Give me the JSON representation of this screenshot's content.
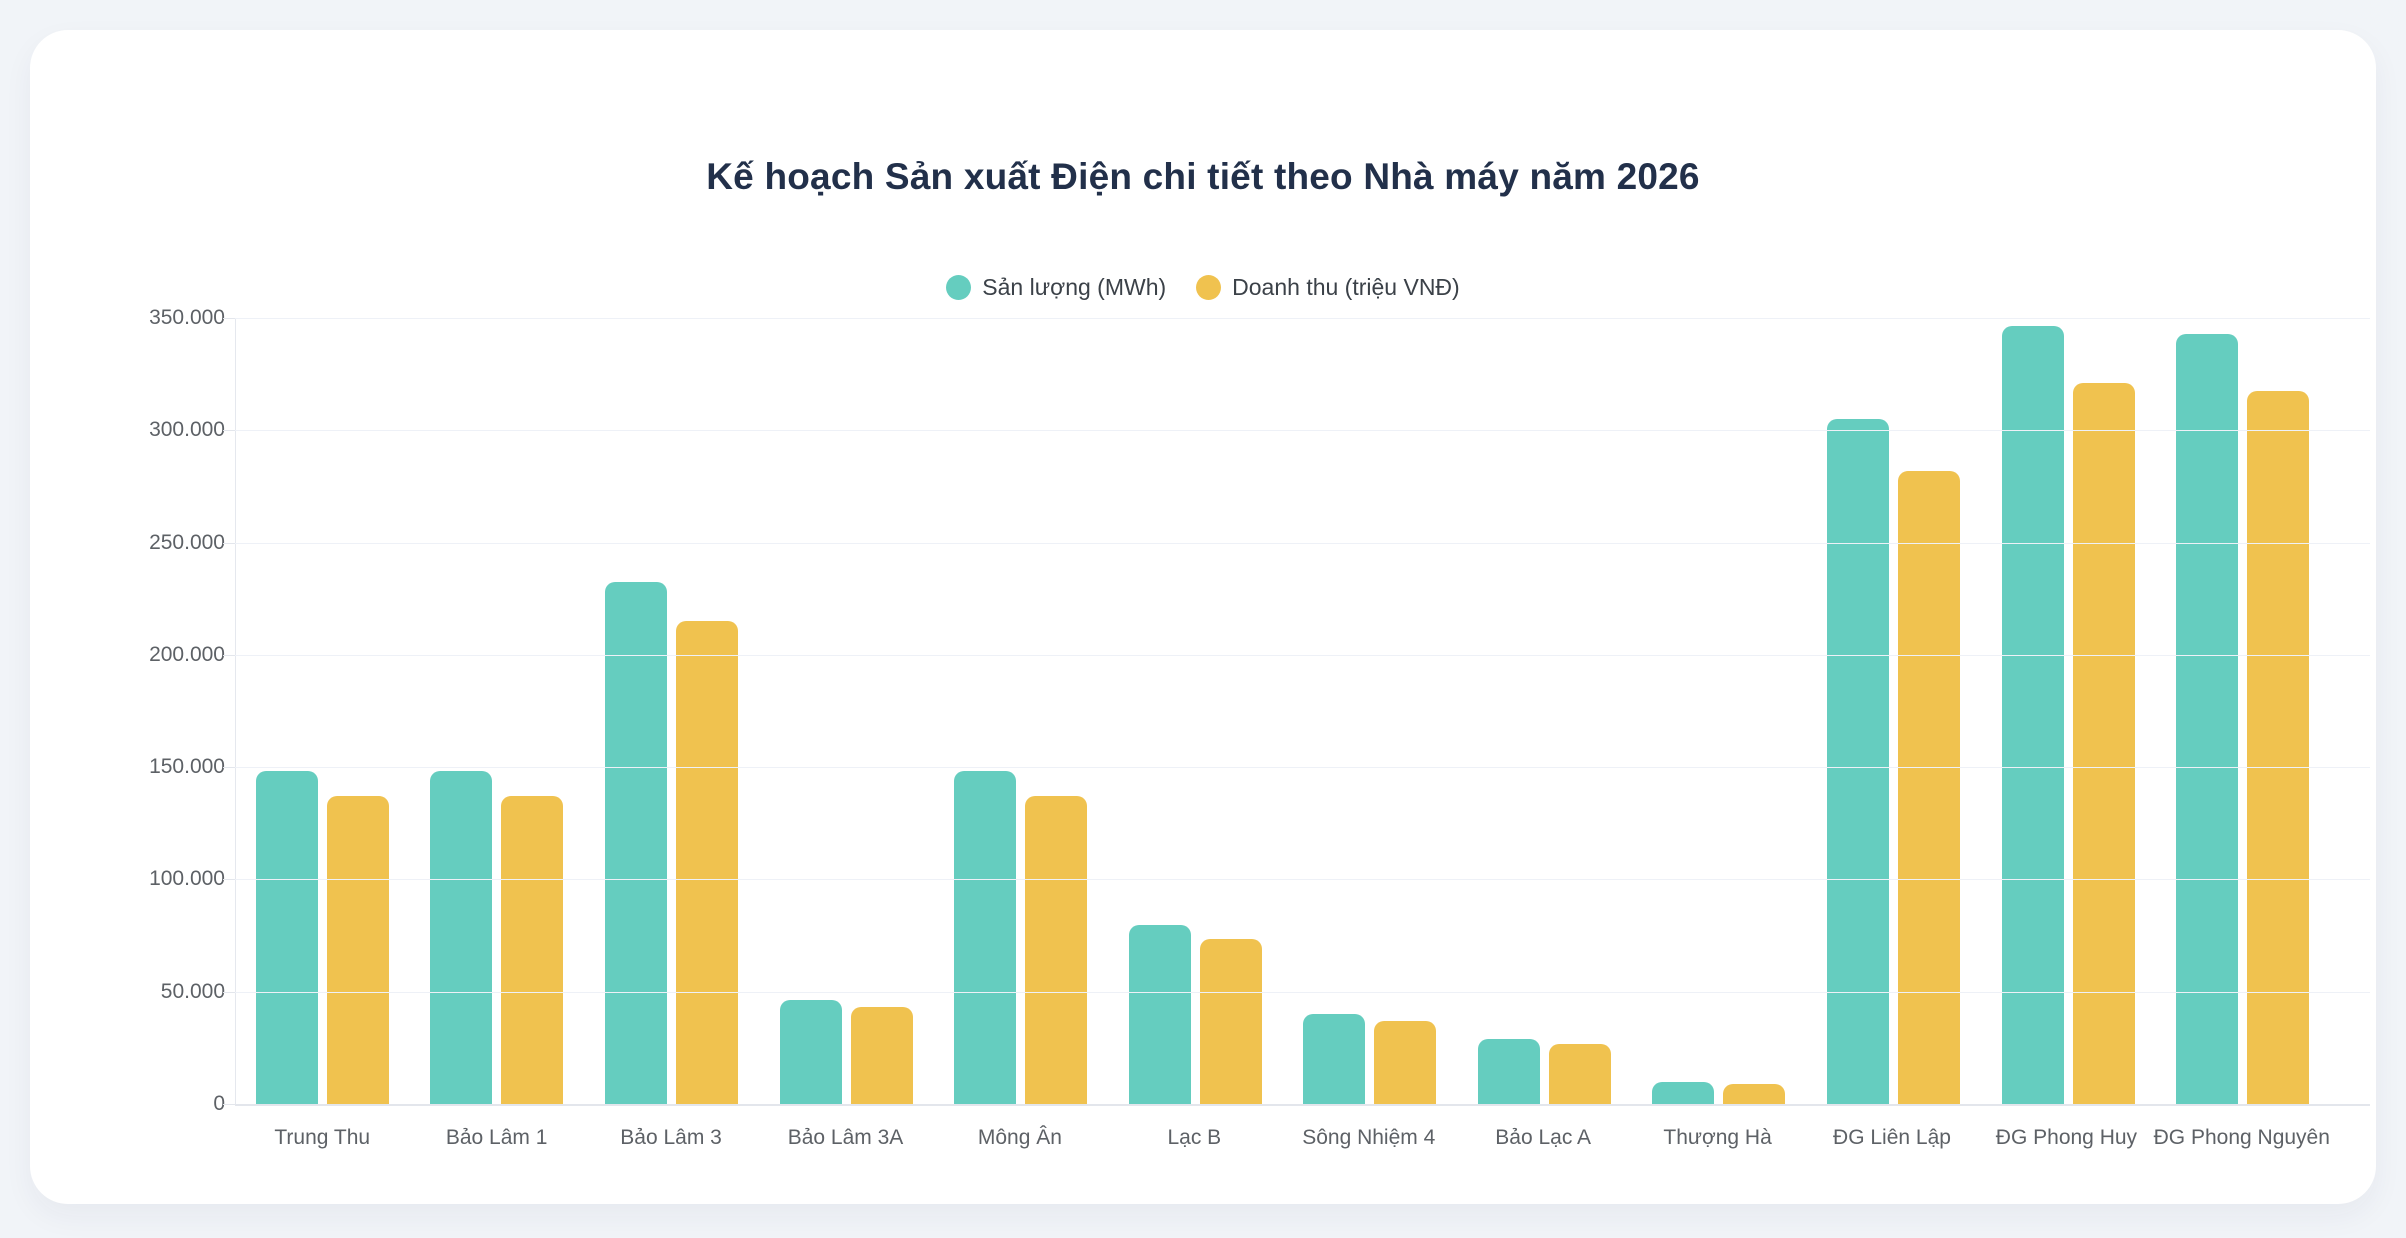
{
  "page": {
    "background_color": "#f1f4f8",
    "card_color": "#ffffff"
  },
  "chart": {
    "title": "Kế hoạch Sản xuất Điện chi tiết theo Nhà máy năm 2026",
    "title_color": "#22304a"
  },
  "chart_data": {
    "type": "bar",
    "title": "Kế hoạch Sản xuất Điện chi tiết theo Nhà máy năm 2026",
    "categories": [
      "Trung Thu",
      "Bảo Lâm 1",
      "Bảo Lâm 3",
      "Bảo Lâm 3A",
      "Mông Ân",
      "Lạc B",
      "Sông Nhiệm 4",
      "Bảo Lạc A",
      "Thượng Hà",
      "ĐG Liên Lập",
      "ĐG Phong Huy",
      "ĐG Phong Nguyên"
    ],
    "series": [
      {
        "name": "Sản lượng (MWh)",
        "color": "#65cdbf",
        "values": [
          148500,
          148500,
          232500,
          46500,
          148500,
          79500,
          40000,
          29000,
          10000,
          305000,
          346500,
          343000
        ]
      },
      {
        "name": "Doanh thu (triệu VNĐ)",
        "color": "#f0c24f",
        "values": [
          137000,
          137000,
          215000,
          43000,
          137000,
          73500,
          37000,
          26800,
          9000,
          282000,
          321000,
          317500
        ]
      }
    ],
    "xlabel": "",
    "ylabel": "",
    "ylim": [
      0,
      350000
    ],
    "y_tick_step": 50000,
    "y_tick_labels": [
      "0",
      "50.000",
      "100.000",
      "150.000",
      "200.000",
      "250.000",
      "300.000",
      "350.000"
    ],
    "grid": true,
    "legend_position": "top-center"
  }
}
